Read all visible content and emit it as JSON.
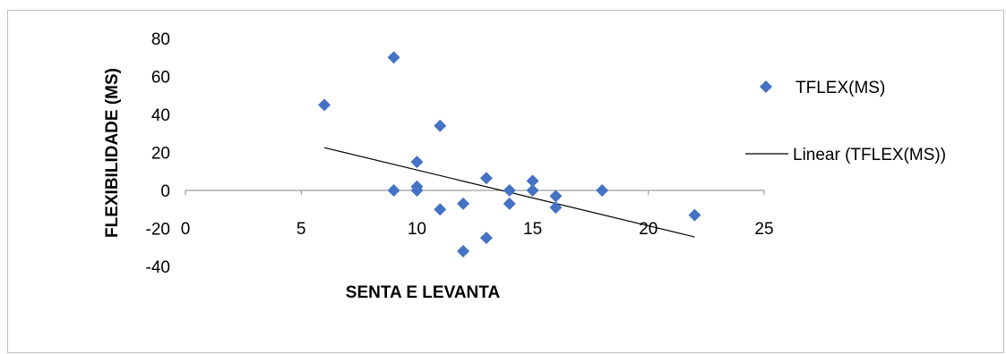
{
  "chart_data": {
    "type": "scatter",
    "xlabel": "SENTA E LEVANTA",
    "ylabel": "FLEXIBILIDADE (MS)",
    "xlim": [
      0,
      25
    ],
    "ylim": [
      -40,
      80
    ],
    "x_ticks": [
      0,
      5,
      10,
      15,
      20,
      25
    ],
    "y_ticks": [
      -40,
      -20,
      0,
      20,
      40,
      60,
      80
    ],
    "x_tick_labels": [
      "0",
      "5",
      "10",
      "15",
      "20",
      "25"
    ],
    "y_tick_labels": [
      "-40",
      "-20",
      "0",
      "20",
      "40",
      "60",
      "80"
    ],
    "grid": false,
    "legend_position": "right",
    "series": [
      {
        "name": "TFLEX(MS)",
        "color": "#4472C4",
        "marker": "diamond",
        "points": [
          {
            "x": 6,
            "y": 45
          },
          {
            "x": 9,
            "y": 70
          },
          {
            "x": 9,
            "y": 0
          },
          {
            "x": 10,
            "y": 15
          },
          {
            "x": 10,
            "y": 2
          },
          {
            "x": 10,
            "y": 0
          },
          {
            "x": 11,
            "y": 34
          },
          {
            "x": 11,
            "y": -10
          },
          {
            "x": 12,
            "y": -7
          },
          {
            "x": 12,
            "y": -32
          },
          {
            "x": 13,
            "y": 6.5
          },
          {
            "x": 13,
            "y": -25
          },
          {
            "x": 14,
            "y": 0
          },
          {
            "x": 14,
            "y": -7
          },
          {
            "x": 15,
            "y": 5
          },
          {
            "x": 15,
            "y": 0
          },
          {
            "x": 16,
            "y": -3
          },
          {
            "x": 16,
            "y": -9
          },
          {
            "x": 18,
            "y": 0
          },
          {
            "x": 22,
            "y": -13
          }
        ]
      }
    ],
    "trendline": {
      "name": "Linear (TFLEX(MS))",
      "type": "linear",
      "color": "#000000",
      "x_start": 6,
      "y_start": 22.5,
      "x_end": 22,
      "y_end": -24.5
    }
  }
}
